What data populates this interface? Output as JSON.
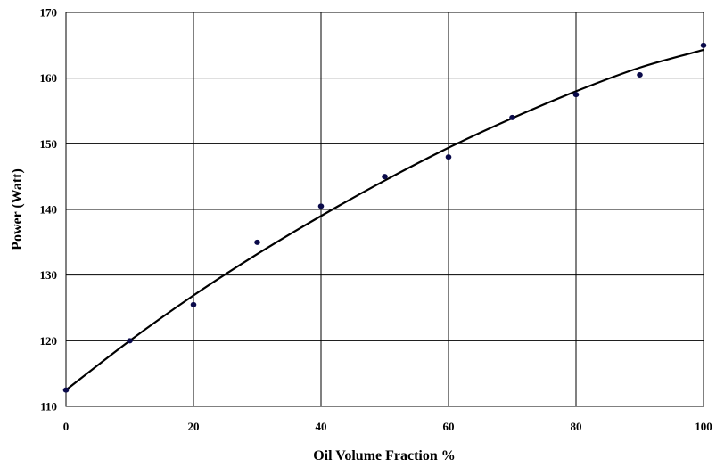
{
  "chart_data": {
    "type": "scatter",
    "title": "",
    "xlabel": "Oil Volume Fraction %",
    "ylabel": "Power (Watt)",
    "xlim": [
      0,
      100
    ],
    "ylim": [
      110,
      170
    ],
    "x_ticks": [
      0,
      20,
      40,
      60,
      80,
      100
    ],
    "y_ticks": [
      110,
      120,
      130,
      140,
      150,
      160,
      170
    ],
    "grid": true,
    "legend": "none",
    "series": [
      {
        "kind": "points",
        "color": "#0a0a4a",
        "x": [
          0,
          10,
          20,
          30,
          40,
          50,
          60,
          70,
          80,
          90,
          100
        ],
        "y": [
          112.5,
          120,
          125.5,
          135,
          140.5,
          145,
          148,
          154,
          157.5,
          160.5,
          165
        ]
      },
      {
        "kind": "fitted-curve",
        "color": "#000000",
        "x": [
          0,
          10,
          20,
          30,
          40,
          50,
          60,
          70,
          80,
          90,
          100
        ],
        "y": [
          112.5,
          120.0,
          126.9,
          133.2,
          139.0,
          144.4,
          149.4,
          153.9,
          158.0,
          161.6,
          164.3
        ]
      }
    ]
  }
}
